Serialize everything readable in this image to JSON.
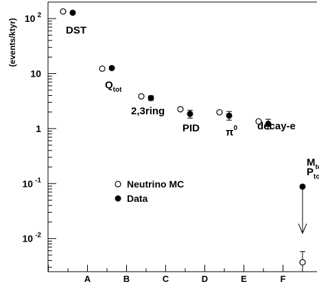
{
  "chart_data": {
    "type": "scatter",
    "ylabel": "(events/ktyr)",
    "yscale": "log",
    "ylim": [
      0.0025,
      200
    ],
    "x_ticks": [
      "A",
      "B",
      "C",
      "D",
      "E",
      "F"
    ],
    "y_ticks": [
      {
        "value": 100,
        "base": "10",
        "exp": "2"
      },
      {
        "value": 10,
        "base": "10",
        "exp": ""
      },
      {
        "value": 1,
        "base": "1",
        "exp": ""
      },
      {
        "value": 0.1,
        "base": "10",
        "exp": "-1"
      },
      {
        "value": 0.01,
        "base": "10",
        "exp": "-2"
      }
    ],
    "stages": [
      {
        "x": 0,
        "label": "DST",
        "sub": "",
        "sup": ""
      },
      {
        "x": 1,
        "label": "Q",
        "sub": "tot",
        "sup": ""
      },
      {
        "x": 2,
        "label": "2,3ring",
        "sub": "",
        "sup": ""
      },
      {
        "x": 3,
        "label": "PID",
        "sub": "",
        "sup": ""
      },
      {
        "x": 4,
        "label": "π",
        "sub": "",
        "sup": "0"
      },
      {
        "x": 5,
        "label": "decay-e",
        "sub": "",
        "sup": ""
      },
      {
        "x": 6,
        "label": "M",
        "sub": "tot",
        "sup": "",
        "label2": "P",
        "sub2": "tot"
      }
    ],
    "legend_position": "center-left",
    "series": [
      {
        "name": "Neutrino MC",
        "marker": "open-circle",
        "points": [
          {
            "x": 0,
            "y": 135
          },
          {
            "x": 1,
            "y": 12.3
          },
          {
            "x": 2,
            "y": 3.85
          },
          {
            "x": 3,
            "y": 2.25
          },
          {
            "x": 4,
            "y": 1.98
          },
          {
            "x": 5,
            "y": 1.35
          },
          {
            "x": 6,
            "y": 0.0037,
            "err_up": 0.0058,
            "err_down": 0.0025
          }
        ]
      },
      {
        "name": "Data",
        "marker": "filled-circle",
        "points": [
          {
            "x": 0,
            "y": 128
          },
          {
            "x": 1,
            "y": 12.6
          },
          {
            "x": 2,
            "y": 3.6,
            "err_up": 3.95,
            "err_down": 3.25
          },
          {
            "x": 3,
            "y": 1.85,
            "err_up": 2.15,
            "err_down": 1.55
          },
          {
            "x": 4,
            "y": 1.72,
            "err_up": 2.05,
            "err_down": 1.42
          },
          {
            "x": 5,
            "y": 1.22,
            "err_up": 1.48,
            "err_down": 0.98
          },
          {
            "x": 6,
            "y": 0.088,
            "upper_limit": true,
            "limit_to": 0.0125
          }
        ]
      }
    ]
  }
}
